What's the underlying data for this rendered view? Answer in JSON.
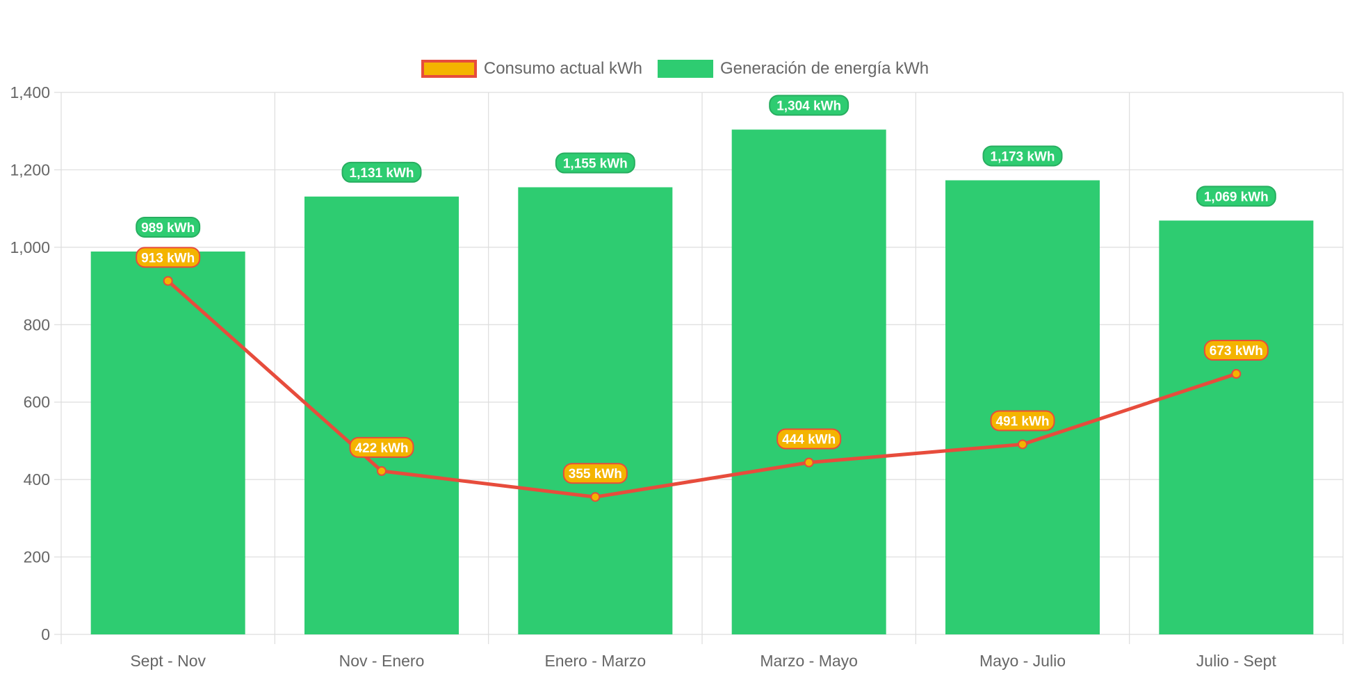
{
  "colors": {
    "bar": "#2ecc71",
    "bar_label_border": "#27ae60",
    "line": "#e74c3c",
    "point_fill": "#f4b400",
    "grid": "#dddddd",
    "text": "#666666"
  },
  "legend": [
    {
      "name": "Consumo actual kWh",
      "swatch": "line"
    },
    {
      "name": "Generación de energía kWh",
      "swatch": "bar"
    }
  ],
  "chart_data": {
    "type": "bar",
    "categories": [
      "Sept - Nov",
      "Nov - Enero",
      "Enero - Marzo",
      "Marzo - Mayo",
      "Mayo - Julio",
      "Julio - Sept"
    ],
    "series": [
      {
        "name": "Consumo actual kWh",
        "type": "line",
        "values": [
          913,
          422,
          355,
          444,
          491,
          673
        ],
        "labels": [
          "913 kWh",
          "422 kWh",
          "355 kWh",
          "444 kWh",
          "491 kWh",
          "673 kWh"
        ]
      },
      {
        "name": "Generación de energía kWh",
        "type": "bar",
        "values": [
          989,
          1131,
          1155,
          1304,
          1173,
          1069
        ],
        "labels": [
          "989 kWh",
          "1,131 kWh",
          "1,155 kWh",
          "1,304 kWh",
          "1,173 kWh",
          "1,069 kWh"
        ]
      }
    ],
    "yticks": [
      0,
      200,
      400,
      600,
      800,
      1000,
      1200,
      1400
    ],
    "ytick_labels": [
      "0",
      "200",
      "400",
      "600",
      "800",
      "1,000",
      "1,200",
      "1,400"
    ],
    "ylim": [
      0,
      1400
    ],
    "title": "",
    "xlabel": "",
    "ylabel": "",
    "grid": true,
    "legend_position": "top"
  }
}
